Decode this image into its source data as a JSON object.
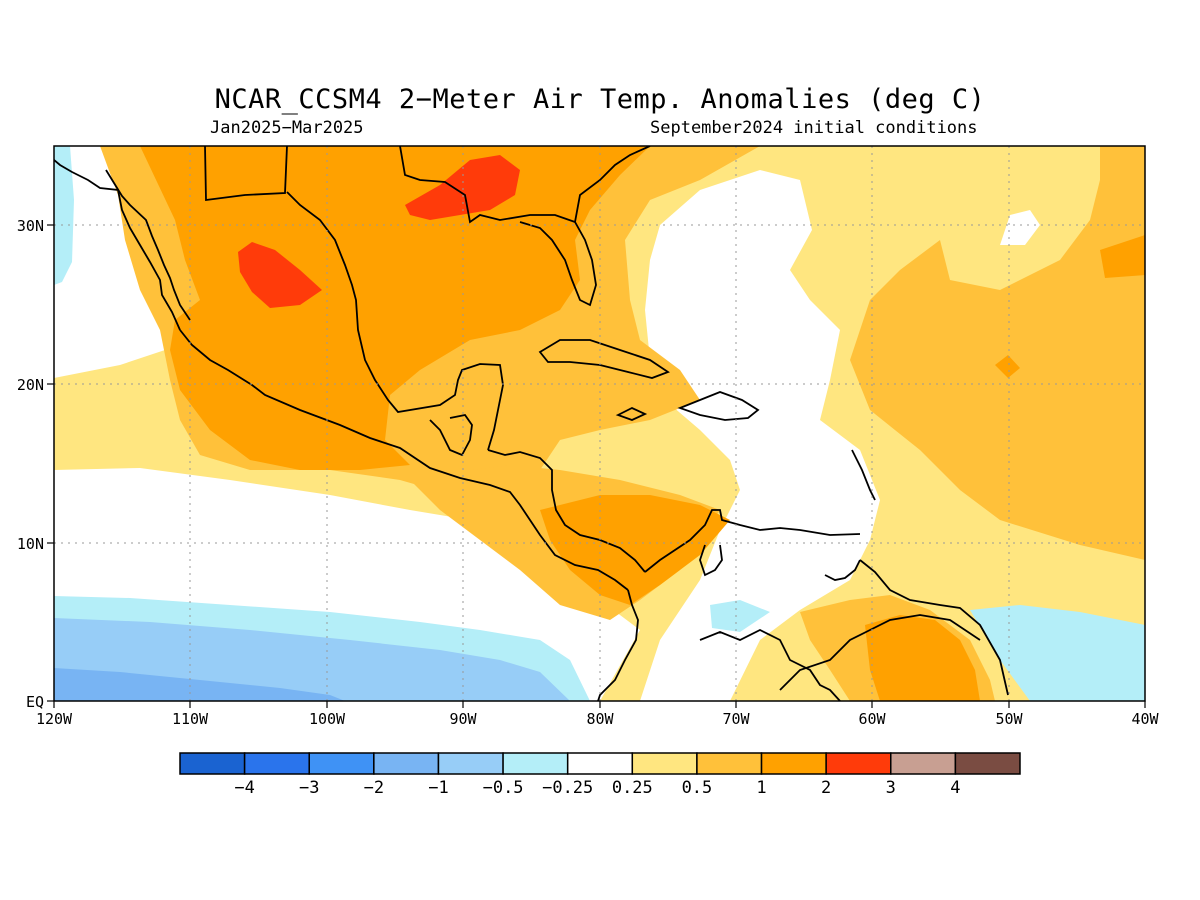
{
  "title": "NCAR_CCSM4 2−Meter Air Temp. Anomalies (deg C)",
  "period": "Jan2025−Mar2025",
  "init": "September2024 initial conditions",
  "lon_labels": [
    "120W",
    "110W",
    "100W",
    "90W",
    "80W",
    "70W",
    "60W",
    "50W",
    "40W"
  ],
  "lat_labels": [
    "30N",
    "20N",
    "10N",
    "EQ"
  ],
  "colorbar": {
    "colors": [
      "#1a63d1",
      "#2a74ec",
      "#3f92f5",
      "#78b4f3",
      "#97cdf7",
      "#b4eef8",
      "#ffffff",
      "#ffe680",
      "#ffc13a",
      "#ffa100",
      "#ff3b0a",
      "#c89f92",
      "#7a4c42"
    ],
    "labels": [
      "−4",
      "−3",
      "−2",
      "−1",
      "−0.5",
      "−0.25",
      "0.25",
      "0.5",
      "1",
      "2",
      "3",
      "4"
    ]
  }
}
